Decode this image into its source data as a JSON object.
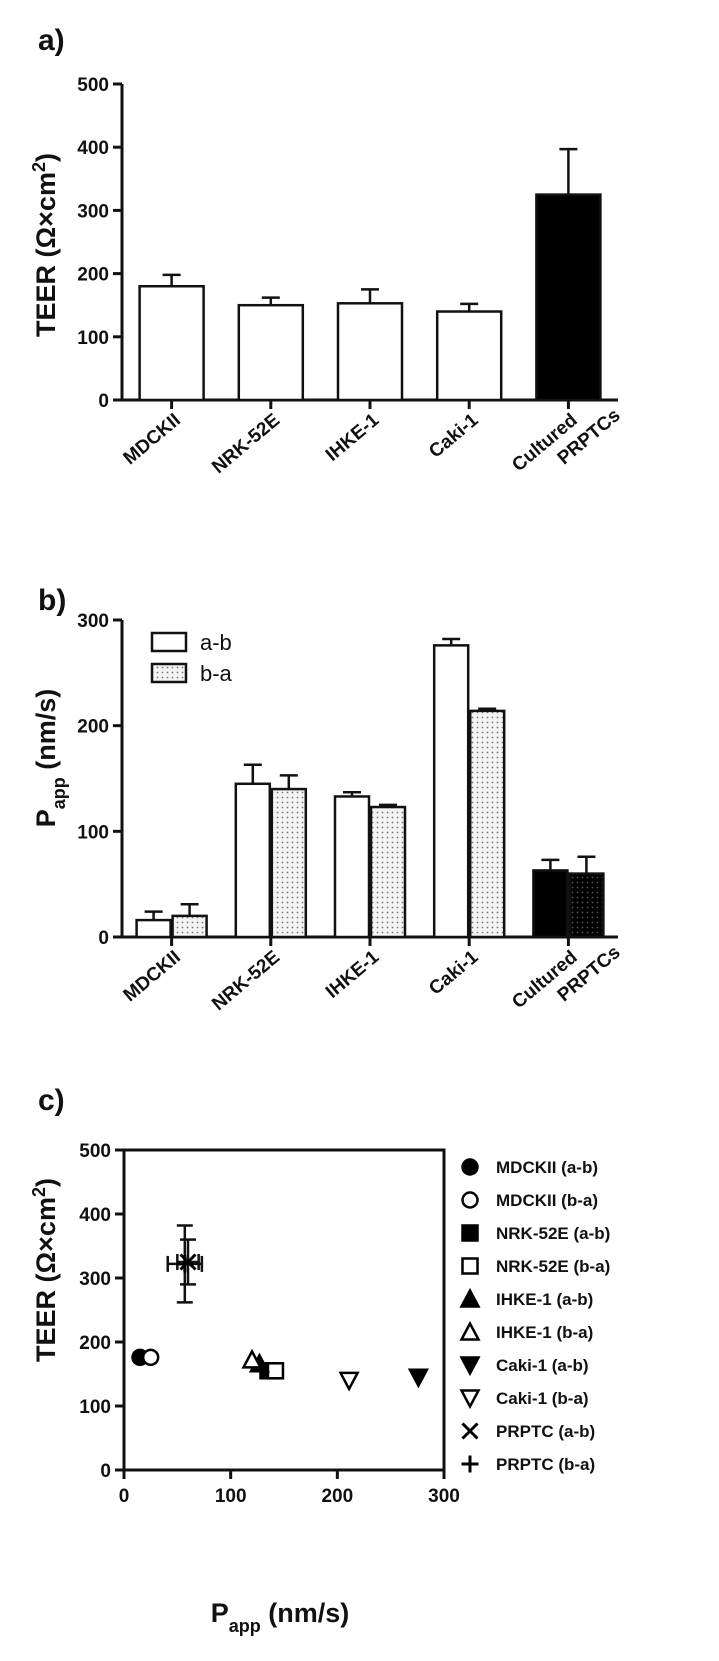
{
  "chart_data": [
    {
      "type": "bar",
      "panel_label": "a)",
      "ylabel_text": "TEER (Ω×cm",
      "ylabel_sup": "2",
      "ylabel_close": ")",
      "ylim": [
        0,
        500
      ],
      "yticks": [
        0,
        100,
        200,
        300,
        400,
        500
      ],
      "categories": [
        "MDCKII",
        "NRK-52E",
        "IHKE-1",
        "Caki-1",
        "Cultured PRPTCs"
      ],
      "category_lines": [
        [
          "MDCKII"
        ],
        [
          "NRK-52E"
        ],
        [
          "IHKE-1"
        ],
        [
          "Caki-1"
        ],
        [
          "Cultured",
          "PRPTCs"
        ]
      ],
      "values": [
        180,
        150,
        153,
        140,
        325
      ],
      "errors": [
        18,
        12,
        22,
        12,
        72
      ],
      "fills": [
        "#ffffff",
        "#ffffff",
        "#ffffff",
        "#ffffff",
        "#000000"
      ]
    },
    {
      "type": "bar",
      "panel_label": "b)",
      "ylabel_main": "P",
      "ylabel_sub": "app",
      "ylabel_rest": " (nm/s)",
      "ylim": [
        0,
        300
      ],
      "yticks": [
        0,
        100,
        200,
        300
      ],
      "categories": [
        "MDCKII",
        "NRK-52E",
        "IHKE-1",
        "Caki-1",
        "Cultured PRPTCs"
      ],
      "category_lines": [
        [
          "MDCKII"
        ],
        [
          "NRK-52E"
        ],
        [
          "IHKE-1"
        ],
        [
          "Caki-1"
        ],
        [
          "Cultured",
          "PRPTCs"
        ]
      ],
      "series": [
        {
          "name": "a-b",
          "values": [
            16,
            145,
            133,
            276,
            63
          ],
          "errors": [
            8,
            18,
            4,
            6,
            10
          ]
        },
        {
          "name": "b-a",
          "values": [
            20,
            140,
            123,
            214,
            60
          ],
          "errors": [
            11,
            13,
            2,
            2,
            16
          ]
        }
      ],
      "legend_position": "top-left"
    },
    {
      "type": "scatter",
      "panel_label": "c)",
      "ylabel_text": "TEER (Ω×cm",
      "ylabel_sup": "2",
      "ylabel_close": ")",
      "xlabel_main": "P",
      "xlabel_sub": "app",
      "xlabel_rest": " (nm/s)",
      "xlim": [
        0,
        300
      ],
      "ylim": [
        0,
        500
      ],
      "xticks": [
        0,
        100,
        200,
        300
      ],
      "yticks": [
        0,
        100,
        200,
        300,
        400,
        500
      ],
      "legend_position": "right",
      "series": [
        {
          "name": "MDCKII (a-b)",
          "marker": "circle-filled",
          "x": 15,
          "y": 176,
          "xerr": 0,
          "yerr": 0
        },
        {
          "name": "MDCKII (b-a)",
          "marker": "circle-open",
          "x": 25,
          "y": 176,
          "xerr": 0,
          "yerr": 0
        },
        {
          "name": "NRK-52E (a-b)",
          "marker": "square-filled",
          "x": 135,
          "y": 155,
          "xerr": 0,
          "yerr": 0
        },
        {
          "name": "NRK-52E (b-a)",
          "marker": "square-open",
          "x": 142,
          "y": 155,
          "xerr": 0,
          "yerr": 0
        },
        {
          "name": "IHKE-1 (a-b)",
          "marker": "triangle-up-filled",
          "x": 127,
          "y": 166,
          "xerr": 0,
          "yerr": 0
        },
        {
          "name": "IHKE-1 (b-a)",
          "marker": "triangle-up-open",
          "x": 120,
          "y": 172,
          "xerr": 0,
          "yerr": 0
        },
        {
          "name": "Caki-1 (a-b)",
          "marker": "triangle-down-filled",
          "x": 276,
          "y": 145,
          "xerr": 0,
          "yerr": 0
        },
        {
          "name": "Caki-1 (b-a)",
          "marker": "triangle-down-open",
          "x": 211,
          "y": 140,
          "xerr": 0,
          "yerr": 0
        },
        {
          "name": "PRPTC (a-b)",
          "marker": "x",
          "x": 60,
          "y": 325,
          "xerr": 10,
          "yerr": 35
        },
        {
          "name": "PRPTC (b-a)",
          "marker": "plus",
          "x": 57,
          "y": 322,
          "xerr": 16,
          "yerr": 60
        }
      ]
    }
  ]
}
